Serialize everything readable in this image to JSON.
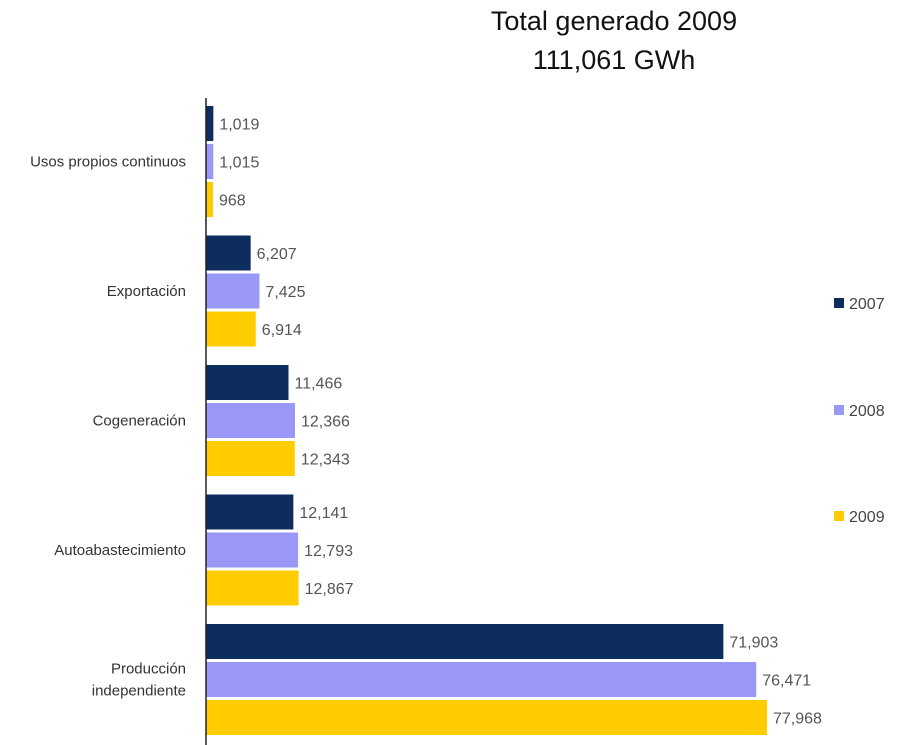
{
  "chart_data": {
    "type": "bar",
    "orientation": "horizontal",
    "title": "Total generado 2009",
    "subtitle": "111,061 GWh",
    "categories": [
      "Usos propios continuos",
      "Exportación",
      "Cogeneración",
      "Autoabastecimiento",
      "Producción independiente"
    ],
    "series": [
      {
        "name": "2007",
        "color": "#0d2d5e",
        "values": [
          1019,
          6207,
          11466,
          12141,
          71903
        ],
        "labels": [
          "1,019",
          "6,207",
          "11,466",
          "12,141",
          "71,903"
        ]
      },
      {
        "name": "2008",
        "color": "#9a98f7",
        "values": [
          1015,
          7425,
          12366,
          12793,
          76471
        ],
        "labels": [
          "1,015",
          "7,425",
          "12,366",
          "12,793",
          "76,471"
        ]
      },
      {
        "name": "2009",
        "color": "#ffcc00",
        "values": [
          968,
          6914,
          12343,
          12867,
          77968
        ],
        "labels": [
          "968",
          "6,914",
          "12,343",
          "12,867",
          "77,968"
        ]
      }
    ],
    "xlim": [
      0,
      80000
    ],
    "grid": false,
    "legend_position": "right"
  }
}
